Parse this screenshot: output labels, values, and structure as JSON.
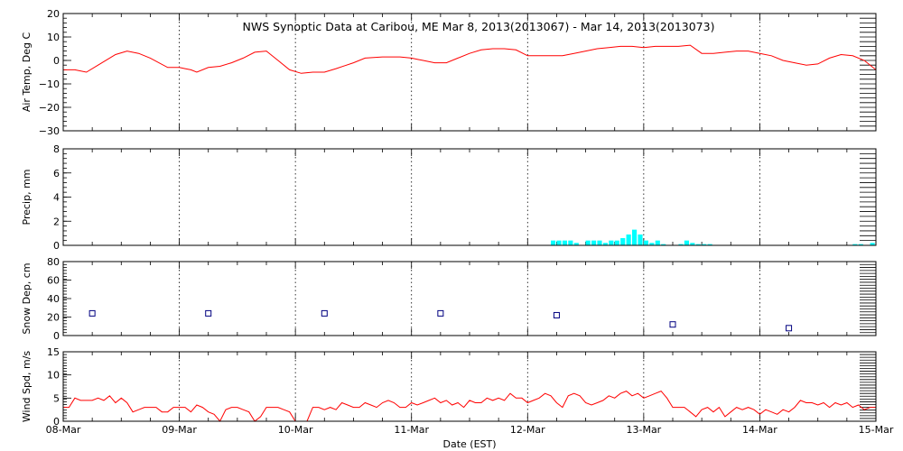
{
  "chart_data": {
    "title": "NWS Synoptic Data at Caribou, ME   Mar  8, 2013(2013067) - Mar 14, 2013(2013073)",
    "xlabel": "Date (EST)",
    "x_ticks": [
      "08-Mar",
      "09-Mar",
      "10-Mar",
      "11-Mar",
      "12-Mar",
      "13-Mar",
      "14-Mar",
      "15-Mar"
    ],
    "x_range_days": [
      0,
      7
    ],
    "grid": "vertical dotted lines at each day",
    "panels": [
      {
        "type": "line",
        "ylabel": "Air Temp, Deg C",
        "ylim": [
          -30,
          20
        ],
        "yticks": [
          "20",
          "10",
          "0",
          "−10",
          "−20",
          "−30"
        ],
        "ytick_values": [
          20,
          10,
          0,
          -10,
          -20,
          -30
        ],
        "color": "#ff0000",
        "series": [
          {
            "x_days": [
              0,
              0.1,
              0.2,
              0.3,
              0.45,
              0.55,
              0.65,
              0.75,
              0.9,
              1.0,
              1.05,
              1.1,
              1.15,
              1.25,
              1.35,
              1.45,
              1.55,
              1.65,
              1.75,
              1.85,
              1.95,
              2.05,
              2.15,
              2.25,
              2.35,
              2.5,
              2.6,
              2.75,
              2.9,
              3.0,
              3.05,
              3.1,
              3.2,
              3.3,
              3.4,
              3.5,
              3.6,
              3.7,
              3.8,
              3.9,
              4.0,
              4.1,
              4.2,
              4.3,
              4.4,
              4.5,
              4.6,
              4.7,
              4.8,
              4.9,
              5.0,
              5.1,
              5.2,
              5.3,
              5.4,
              5.5,
              5.6,
              5.7,
              5.8,
              5.9,
              6.0,
              6.1,
              6.2,
              6.3,
              6.4,
              6.5,
              6.6,
              6.7,
              6.8,
              6.9,
              7.0
            ],
            "y": [
              -4,
              -4,
              -5,
              -2,
              2.5,
              4,
              3,
              1,
              -3,
              -3,
              -3.5,
              -4,
              -5,
              -3,
              -2.5,
              -1,
              1,
              3.5,
              4,
              0,
              -4,
              -5.5,
              -5,
              -5,
              -3.5,
              -1,
              1,
              1.5,
              1.5,
              1,
              0.5,
              0,
              -1,
              -1,
              1,
              3,
              4.5,
              5,
              5,
              4.5,
              2,
              2,
              2,
              2,
              3,
              4,
              5,
              5.5,
              6,
              6,
              5.5,
              6,
              6,
              6,
              6.5,
              3,
              3,
              3.5,
              4,
              4,
              3,
              2,
              0,
              -1,
              -2,
              -1.5,
              1,
              2.5,
              2,
              0,
              -4
            ]
          }
        ]
      },
      {
        "type": "bar",
        "ylabel": "Precip, mm",
        "ylim": [
          0,
          8
        ],
        "yticks": [
          "8",
          "6",
          "4",
          "2",
          "0"
        ],
        "ytick_values": [
          8,
          6,
          4,
          2,
          0
        ],
        "color": "#00ffff",
        "bin_days": 0.04,
        "series": [
          {
            "x_days": [
              4.2,
              4.25,
              4.3,
              4.35,
              4.4,
              4.5,
              4.55,
              4.6,
              4.65,
              4.7,
              4.75,
              4.8,
              4.85,
              4.9,
              4.95,
              5.0,
              5.05,
              5.1,
              5.15,
              5.3,
              5.35,
              5.4,
              5.45,
              5.5,
              5.55,
              6.8,
              6.85,
              6.95
            ],
            "y": [
              0.4,
              0.4,
              0.4,
              0.4,
              0.2,
              0.4,
              0.4,
              0.4,
              0.2,
              0.4,
              0.4,
              0.6,
              0.9,
              1.3,
              0.9,
              0.4,
              0.2,
              0.4,
              0.1,
              0.1,
              0.4,
              0.2,
              0.1,
              0.1,
              0.1,
              0.1,
              0.1,
              0.2
            ]
          }
        ]
      },
      {
        "type": "scatter",
        "ylabel": "Snow Dep, cm",
        "ylim": [
          0,
          80
        ],
        "yticks": [
          "80",
          "60",
          "40",
          "20",
          "0"
        ],
        "ytick_values": [
          80,
          60,
          40,
          20,
          0
        ],
        "color": "#000080",
        "marker": "open-square",
        "series": [
          {
            "x_days": [
              0.25,
              1.25,
              2.25,
              3.25,
              4.25,
              5.25,
              6.25
            ],
            "y": [
              24,
              24,
              24,
              24,
              22,
              12,
              8
            ]
          }
        ]
      },
      {
        "type": "line",
        "ylabel": "Wind Spd, m/s",
        "ylim": [
          0,
          15
        ],
        "yticks": [
          "15",
          "10",
          "5",
          "0"
        ],
        "ytick_values": [
          15,
          10,
          5,
          0
        ],
        "color": "#ff0000",
        "series": [
          {
            "x_days": [
              0,
              0.05,
              0.1,
              0.15,
              0.2,
              0.25,
              0.3,
              0.35,
              0.4,
              0.45,
              0.5,
              0.55,
              0.6,
              0.65,
              0.7,
              0.75,
              0.8,
              0.85,
              0.9,
              0.95,
              1.0,
              1.05,
              1.1,
              1.15,
              1.2,
              1.25,
              1.3,
              1.35,
              1.4,
              1.45,
              1.5,
              1.55,
              1.6,
              1.65,
              1.7,
              1.75,
              1.8,
              1.85,
              1.9,
              1.95,
              2.0,
              2.05,
              2.1,
              2.15,
              2.2,
              2.25,
              2.3,
              2.35,
              2.4,
              2.45,
              2.5,
              2.55,
              2.6,
              2.65,
              2.7,
              2.75,
              2.8,
              2.85,
              2.9,
              2.95,
              3.0,
              3.05,
              3.1,
              3.15,
              3.2,
              3.25,
              3.3,
              3.35,
              3.4,
              3.45,
              3.5,
              3.55,
              3.6,
              3.65,
              3.7,
              3.75,
              3.8,
              3.85,
              3.9,
              3.95,
              4.0,
              4.05,
              4.1,
              4.15,
              4.2,
              4.25,
              4.3,
              4.35,
              4.4,
              4.45,
              4.5,
              4.55,
              4.6,
              4.65,
              4.7,
              4.75,
              4.8,
              4.85,
              4.9,
              4.95,
              5.0,
              5.05,
              5.1,
              5.15,
              5.2,
              5.25,
              5.3,
              5.35,
              5.4,
              5.45,
              5.5,
              5.55,
              5.6,
              5.65,
              5.7,
              5.75,
              5.8,
              5.85,
              5.9,
              5.95,
              6.0,
              6.05,
              6.1,
              6.15,
              6.2,
              6.25,
              6.3,
              6.35,
              6.4,
              6.45,
              6.5,
              6.55,
              6.6,
              6.65,
              6.7,
              6.75,
              6.8,
              6.85,
              6.9,
              6.95,
              7.0
            ],
            "y": [
              3,
              3,
              5,
              4.5,
              4.5,
              4.5,
              5,
              4.5,
              5.5,
              4,
              5,
              4,
              2,
              2.5,
              3,
              3,
              3,
              2,
              2,
              3,
              3,
              3,
              2,
              3.5,
              3,
              2,
              1.5,
              0,
              2.5,
              3,
              3,
              2.5,
              2,
              0,
              1,
              3,
              3,
              3,
              2.5,
              2,
              0,
              0,
              0,
              3,
              3,
              2.5,
              3,
              2.5,
              4,
              3.5,
              3,
              3,
              4,
              3.5,
              3,
              4,
              4.5,
              4,
              3,
              3,
              4,
              3.5,
              4,
              4.5,
              5,
              4,
              4.5,
              3.5,
              4,
              3,
              4.5,
              4,
              4,
              5,
              4.5,
              5,
              4.5,
              6,
              5,
              5,
              4,
              4.5,
              5,
              6,
              5.5,
              4,
              3,
              5.5,
              6,
              5.5,
              4,
              3.5,
              4,
              4.5,
              5.5,
              5,
              6,
              6.5,
              5.5,
              6,
              5,
              5.5,
              6,
              6.5,
              5,
              3,
              3,
              3,
              2,
              1,
              2.5,
              3,
              2,
              3,
              1,
              2,
              3,
              2.5,
              3,
              2.5,
              1.5,
              2.5,
              2,
              1.5,
              2.5,
              2,
              3,
              4.5,
              4,
              4,
              3.5,
              4,
              3,
              4,
              3.5,
              4,
              3,
              3.5,
              2.5,
              3,
              3
            ]
          }
        ]
      }
    ]
  }
}
